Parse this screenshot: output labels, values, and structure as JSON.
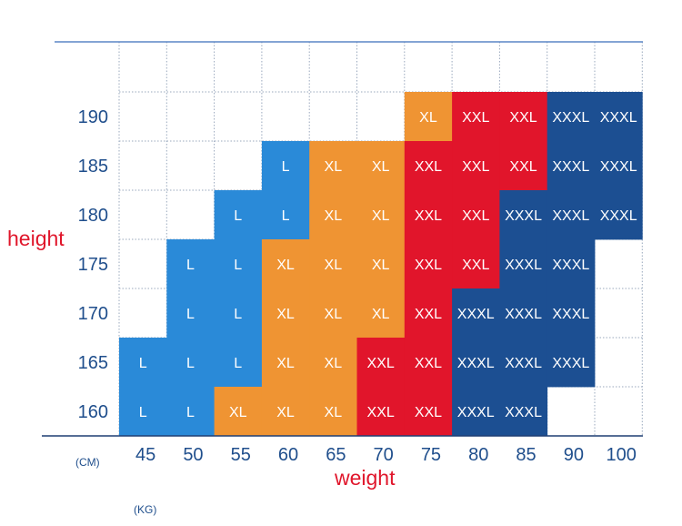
{
  "chart_data": {
    "type": "heatmap",
    "title": "",
    "xlabel": "weight",
    "ylabel": "height",
    "x_unit": "(KG)",
    "y_unit": "(CM)",
    "x_categories": [
      "45",
      "50",
      "55",
      "60",
      "65",
      "70",
      "75",
      "80",
      "85",
      "90",
      "100"
    ],
    "y_categories": [
      "190",
      "185",
      "180",
      "175",
      "170",
      "165",
      "160"
    ],
    "size_colors": {
      "L": "#2a8ad8",
      "XL": "#ef9433",
      "XXL": "#e1152b",
      "XXXL": "#1c4f92"
    },
    "rows": [
      [
        "",
        "",
        "",
        "",
        "",
        "",
        "XL",
        "XXL",
        "XXL",
        "XXXL",
        "XXXL"
      ],
      [
        "",
        "",
        "",
        "L",
        "XL",
        "XL",
        "XXL",
        "XXL",
        "XXL",
        "XXXL",
        "XXXL"
      ],
      [
        "",
        "",
        "L",
        "L",
        "XL",
        "XL",
        "XXL",
        "XXL",
        "XXXL",
        "XXXL",
        "XXXL"
      ],
      [
        "",
        "L",
        "L",
        "XL",
        "XL",
        "XL",
        "XXL",
        "XXL",
        "XXXL",
        "XXXL",
        ""
      ],
      [
        "",
        "L",
        "L",
        "XL",
        "XL",
        "XL",
        "XXL",
        "XXXL",
        "XXXL",
        "XXXL",
        ""
      ],
      [
        "L",
        "L",
        "L",
        "XL",
        "XL",
        "XXL",
        "XXL",
        "XXXL",
        "XXXL",
        "XXXL",
        ""
      ],
      [
        "L",
        "L",
        "XL",
        "XL",
        "XL",
        "XXL",
        "XXL",
        "XXXL",
        "XXXL",
        "",
        ""
      ]
    ]
  }
}
